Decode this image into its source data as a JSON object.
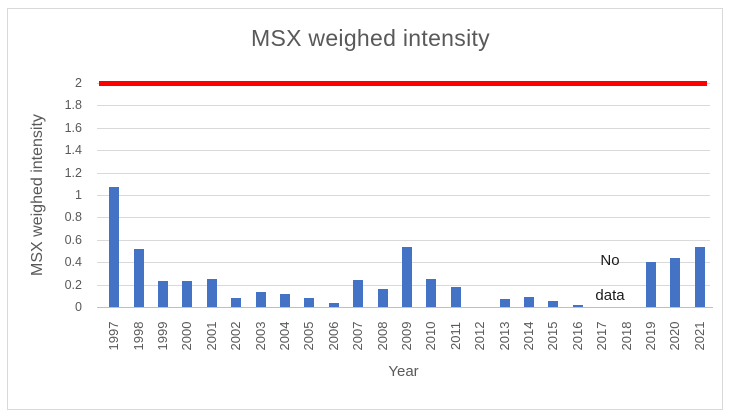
{
  "chart_data": {
    "type": "bar",
    "title": "MSX weighed intensity",
    "xlabel": "Year",
    "ylabel": "MSX weighed intensity",
    "categories": [
      "1997",
      "1998",
      "1999",
      "2000",
      "2001",
      "2002",
      "2003",
      "2004",
      "2005",
      "2006",
      "2007",
      "2008",
      "2009",
      "2010",
      "2011",
      "2012",
      "2013",
      "2014",
      "2015",
      "2016",
      "2017",
      "2018",
      "2019",
      "2020",
      "2021"
    ],
    "values": [
      1.07,
      0.52,
      0.23,
      0.23,
      0.25,
      0.08,
      0.13,
      0.12,
      0.08,
      0.04,
      0.24,
      0.16,
      0.54,
      0.25,
      0.18,
      0,
      0.07,
      0.09,
      0.05,
      0.02,
      null,
      null,
      0.4,
      0.44,
      0.54
    ],
    "ylim": [
      0,
      2
    ],
    "ytick_labels": [
      "0",
      "0.2",
      "0.4",
      "0.6",
      "0.8",
      "1",
      "1.2",
      "1.4",
      "1.6",
      "1.8",
      "2"
    ],
    "reference_line": {
      "value": 2,
      "color": "#ff0000"
    },
    "annotation": {
      "line1": "No",
      "line2": "data",
      "covers_categories": [
        "2017",
        "2018"
      ]
    },
    "bar_color": "#4472c4",
    "gridline_color": "#d9d9d9",
    "text_color": "#595959",
    "grid": true,
    "legend": false
  }
}
